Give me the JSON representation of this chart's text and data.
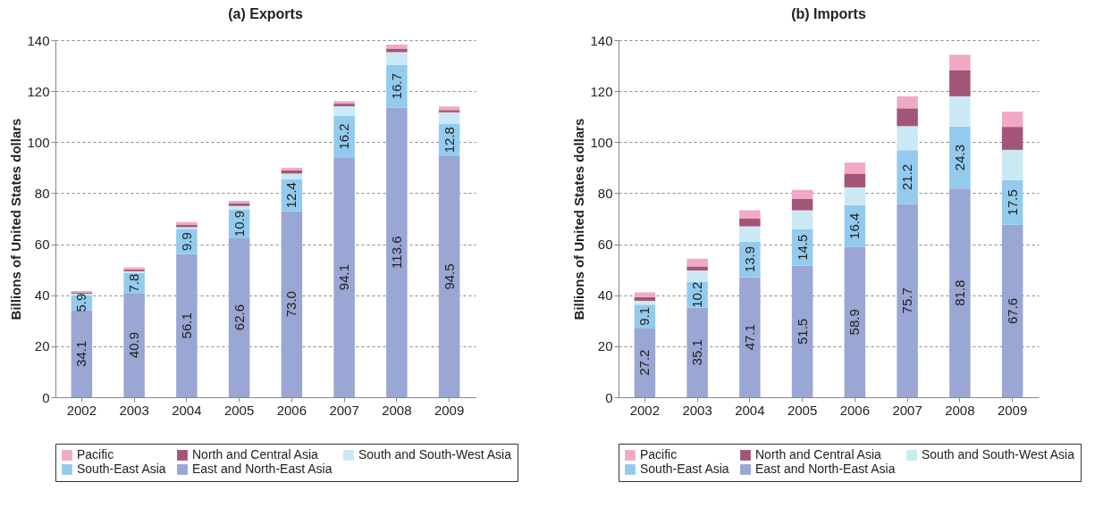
{
  "chart_data": [
    {
      "type": "bar",
      "stacked": true,
      "title": "(a) Exports",
      "ylabel": "Billions of United States dollars",
      "categories": [
        "2002",
        "2003",
        "2004",
        "2005",
        "2006",
        "2007",
        "2008",
        "2009"
      ],
      "ylim": [
        0,
        140
      ],
      "yticks": [
        0,
        20,
        40,
        60,
        80,
        100,
        120,
        140
      ],
      "grid": "y",
      "legend": "bottom",
      "series": [
        {
          "name": "East and North-East Asia",
          "color": "#9aa6d3",
          "values": [
            34.1,
            40.9,
            56.1,
            62.6,
            73.0,
            94.1,
            113.6,
            94.5
          ],
          "value_labels": [
            "34.1",
            "40.9",
            "56.1",
            "62.6",
            "73.0",
            "94.1",
            "113.6",
            "94.5"
          ]
        },
        {
          "name": "South-East Asia",
          "color": "#93cbee",
          "values": [
            5.9,
            7.8,
            9.9,
            10.9,
            12.4,
            16.2,
            16.7,
            12.8
          ],
          "value_labels": [
            "5.9",
            "7.8",
            "9.9",
            "10.9",
            "12.4",
            "16.2",
            "16.7",
            "12.8"
          ]
        },
        {
          "name": "South and South-West Asia",
          "color": "#cbe9f5",
          "values": [
            0.6,
            0.7,
            0.7,
            1.5,
            2.3,
            3.8,
            5.0,
            4.4
          ]
        },
        {
          "name": "North and Central Asia",
          "color": "#a35577",
          "values": [
            0.5,
            0.7,
            1.0,
            1.0,
            1.3,
            1.0,
            1.4,
            0.9
          ]
        },
        {
          "name": "Pacific",
          "color": "#f2a9c6",
          "values": [
            0.6,
            0.8,
            1.0,
            1.0,
            1.0,
            1.0,
            1.6,
            1.4
          ]
        }
      ]
    },
    {
      "type": "bar",
      "stacked": true,
      "title": "(b) Imports",
      "ylabel": "Billions of United States dollars",
      "categories": [
        "2002",
        "2003",
        "2004",
        "2005",
        "2006",
        "2007",
        "2008",
        "2009"
      ],
      "ylim": [
        0,
        140
      ],
      "yticks": [
        0,
        20,
        40,
        60,
        80,
        100,
        120,
        140
      ],
      "grid": "y",
      "legend": "bottom",
      "series": [
        {
          "name": "East and North-East Asia",
          "color": "#9aa6d3",
          "values": [
            27.2,
            35.1,
            47.1,
            51.5,
            58.9,
            75.7,
            81.8,
            67.6
          ],
          "value_labels": [
            "27.2",
            "35.1",
            "47.1",
            "51.5",
            "58.9",
            "75.7",
            "81.8",
            "67.6"
          ]
        },
        {
          "name": "South-East Asia",
          "color": "#93cbee",
          "values": [
            9.1,
            10.2,
            13.9,
            14.5,
            16.4,
            21.2,
            24.3,
            17.5
          ],
          "value_labels": [
            "9.1",
            "10.2",
            "13.9",
            "14.5",
            "16.4",
            "21.2",
            "24.3",
            "17.5"
          ]
        },
        {
          "name": "South and South-West Asia",
          "color": "#cbe9f5",
          "values": [
            1.5,
            4.4,
            6.0,
            7.3,
            7.0,
            9.4,
            11.9,
            11.9
          ]
        },
        {
          "name": "North and Central Asia",
          "color": "#a35577",
          "values": [
            1.5,
            1.6,
            3.0,
            4.4,
            5.4,
            7.0,
            10.3,
            9.0
          ]
        },
        {
          "name": "Pacific",
          "color": "#f2a9c6",
          "values": [
            1.8,
            3.0,
            3.3,
            3.6,
            4.3,
            4.7,
            6.0,
            6.0
          ]
        }
      ]
    }
  ]
}
